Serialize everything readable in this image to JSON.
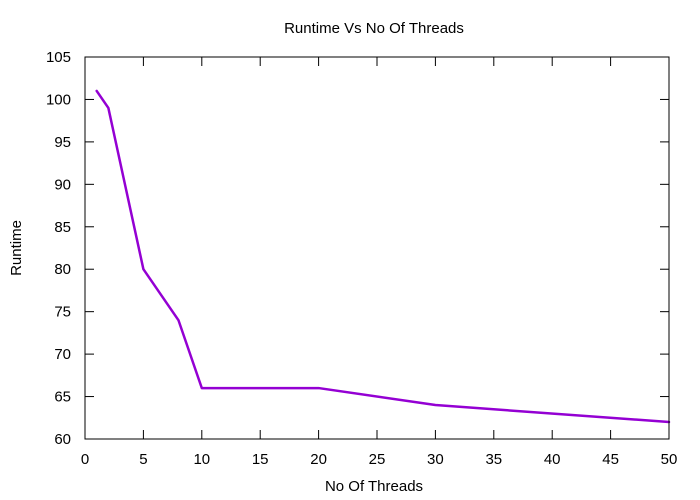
{
  "chart_data": {
    "type": "line",
    "title": "Runtime Vs No Of Threads",
    "xlabel": "No Of Threads",
    "ylabel": "Runtime",
    "xlim": [
      0,
      50
    ],
    "ylim": [
      60,
      105
    ],
    "xticks": [
      0,
      5,
      10,
      15,
      20,
      25,
      30,
      35,
      40,
      45,
      50
    ],
    "yticks": [
      60,
      65,
      70,
      75,
      80,
      85,
      90,
      95,
      100,
      105
    ],
    "grid": false,
    "legend": "none",
    "series": [
      {
        "color": "#9400d3",
        "x": [
          1,
          2,
          5,
          8,
          10,
          20,
          30,
          50
        ],
        "y": [
          101,
          99,
          80,
          74,
          66,
          66,
          64,
          62
        ]
      }
    ]
  }
}
